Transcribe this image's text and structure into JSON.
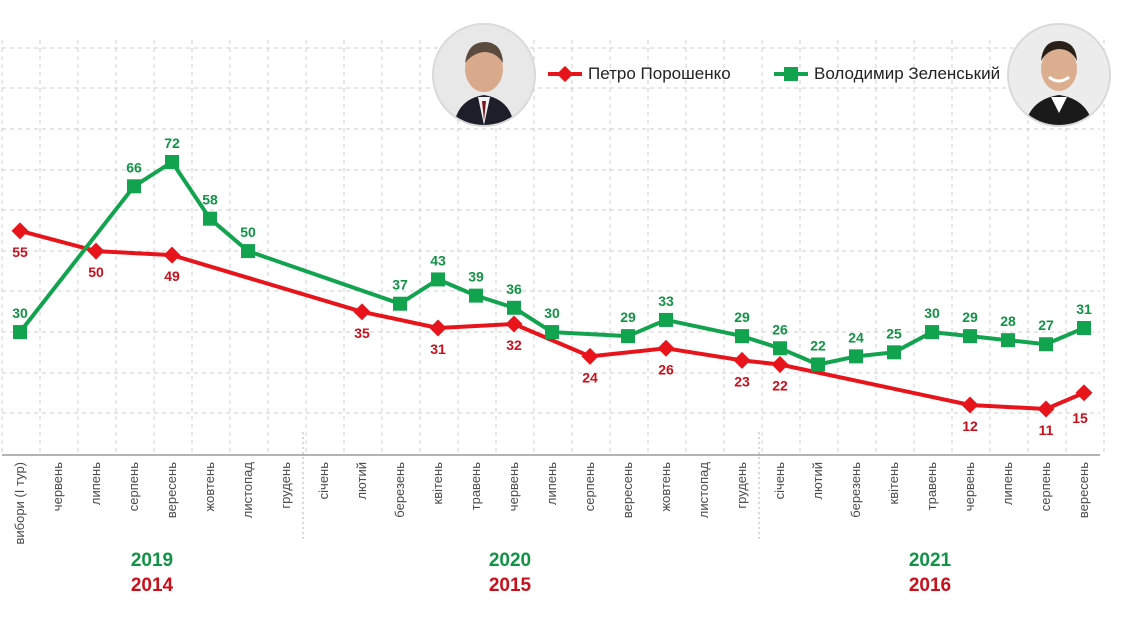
{
  "colors": {
    "poroshenko": "#e8141b",
    "zelensky": "#12a34f",
    "poroshenko_label": "#c8101c",
    "zelensky_label": "#119346",
    "grid": "#cfcfcf",
    "month_text": "#4a4a4a"
  },
  "legend": {
    "poroshenko": "Петро Порошенко",
    "zelensky": "Володимир Зеленський"
  },
  "portraits": {
    "poroshenko": "poroshenko-portrait",
    "zelensky": "zelensky-portrait"
  },
  "chart_data": {
    "type": "line",
    "x": [
      "вибори (І тур)",
      "червень",
      "липень",
      "серпень",
      "вересень",
      "жовтень",
      "листопад",
      "грудень",
      "січень",
      "лютий",
      "березень",
      "квітень",
      "травень",
      "червень",
      "липень",
      "серпень",
      "вересень",
      "жовтень",
      "листопад",
      "грудень",
      "січень",
      "лютий",
      "березень",
      "квітень",
      "травень",
      "червень",
      "липень",
      "серпень",
      "вересень"
    ],
    "year_labels": [
      {
        "green": "2019",
        "red": "2014"
      },
      {
        "green": "2020",
        "red": "2015"
      },
      {
        "green": "2021",
        "red": "2016"
      }
    ],
    "series": [
      {
        "name": "Петро Порошенко",
        "marker": "diamond",
        "values": [
          55,
          null,
          50,
          null,
          49,
          null,
          null,
          null,
          null,
          35,
          null,
          31,
          null,
          32,
          null,
          24,
          null,
          26,
          null,
          23,
          22,
          null,
          null,
          null,
          null,
          12,
          null,
          11,
          15
        ]
      },
      {
        "name": "Володимир Зеленський",
        "marker": "square",
        "values": [
          30,
          null,
          null,
          66,
          72,
          58,
          50,
          null,
          null,
          null,
          37,
          43,
          39,
          36,
          30,
          null,
          29,
          33,
          null,
          29,
          26,
          22,
          24,
          25,
          30,
          29,
          28,
          27,
          31
        ]
      }
    ],
    "ylim": [
      0,
      100
    ],
    "grid": true,
    "legend_position": "top-right",
    "xlabel": "",
    "ylabel": "",
    "title": ""
  }
}
